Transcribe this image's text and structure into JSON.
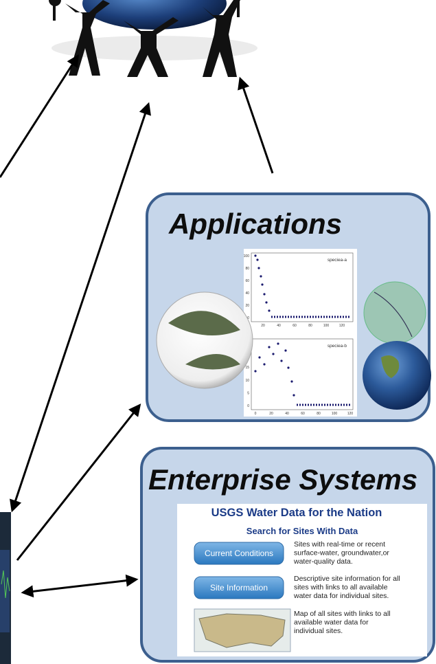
{
  "applications": {
    "title": "Applications",
    "plots": [
      {
        "label": "speciea-a",
        "yticks": [
          "0",
          "20",
          "40",
          "60",
          "80",
          "100"
        ],
        "xticks": [
          "20",
          "40",
          "60",
          "80",
          "100",
          "120"
        ]
      },
      {
        "label": "speciea-b",
        "yticks": [
          "0",
          "5",
          "10",
          "15",
          "20",
          "25"
        ],
        "xticks": [
          "0",
          "20",
          "40",
          "60",
          "80",
          "100",
          "120"
        ]
      }
    ]
  },
  "enterprise": {
    "title": "Enterprise Systems",
    "panel": {
      "heading": "USGS Water Data for the Nation",
      "subheading": "Search for Sites With Data",
      "items": [
        {
          "button": "Current Conditions",
          "lines": [
            "Sites with real-time or recent",
            "surface-water, groundwater,or",
            "water-quality data."
          ]
        },
        {
          "button": "Site Information",
          "lines": [
            "Descriptive site information for all",
            "sites with links to all available",
            "water data for individual sites."
          ]
        },
        {
          "button": null,
          "lines": [
            "Map of all sites with links to all",
            "available water data for",
            "individual sites."
          ]
        }
      ]
    }
  }
}
